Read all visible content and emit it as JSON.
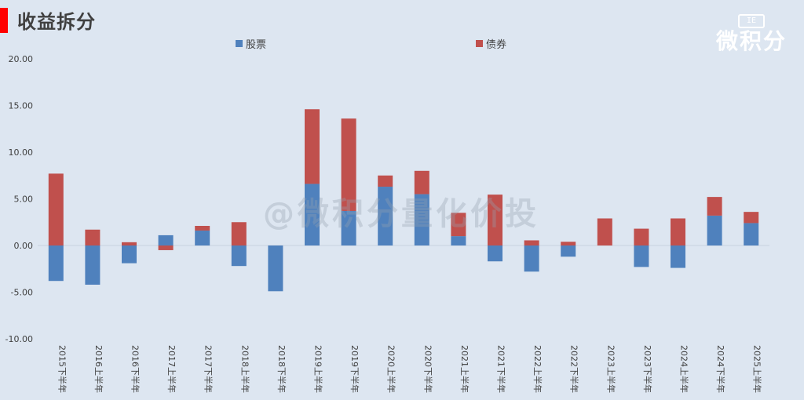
{
  "header": {
    "title": "收益拆分"
  },
  "logo": {
    "box": "IE",
    "text": "微积分"
  },
  "watermark": "@微积分量化价投",
  "colors": {
    "stock": "#4f81bd",
    "bond": "#c0504d",
    "axis": "#404040",
    "grid": "#c8d2e0",
    "title_bar": "#ff0000"
  },
  "chart_data": {
    "type": "bar",
    "stacked": true,
    "title": "",
    "xlabel": "",
    "ylabel": "",
    "ylim": [
      -10,
      20
    ],
    "yticks": [
      20,
      15,
      10,
      5,
      0,
      -5,
      -10
    ],
    "ytick_labels": [
      "20.00",
      "15.00",
      "10.00",
      "5.00",
      "0.00",
      "-5.00",
      "-10.00"
    ],
    "legend_position": "top",
    "grid": false,
    "categories": [
      "2015下半年",
      "2016上半年",
      "2016下半年",
      "2017上半年",
      "2017下半年",
      "2018上半年",
      "2018下半年",
      "2019上半年",
      "2019下半年",
      "2020上半年",
      "2020下半年",
      "2021上半年",
      "2021下半年",
      "2022上半年",
      "2022下半年",
      "2023上半年",
      "2023下半年",
      "2024上半年",
      "2024下半年",
      "2025上半年"
    ],
    "series": [
      {
        "name": "股票",
        "color": "#4f81bd",
        "values": [
          -3.8,
          -4.2,
          -1.9,
          1.1,
          1.6,
          -2.2,
          -4.9,
          6.6,
          3.7,
          6.3,
          5.5,
          1.0,
          -1.7,
          -2.8,
          -1.2,
          0.0,
          -2.3,
          -2.4,
          3.2,
          2.4
        ]
      },
      {
        "name": "债券",
        "color": "#c0504d",
        "values": [
          7.7,
          1.7,
          0.35,
          -0.5,
          0.5,
          2.5,
          0.0,
          8.0,
          9.9,
          1.2,
          2.5,
          2.5,
          5.45,
          0.55,
          0.4,
          2.9,
          1.8,
          2.9,
          2.0,
          1.2
        ]
      }
    ]
  }
}
